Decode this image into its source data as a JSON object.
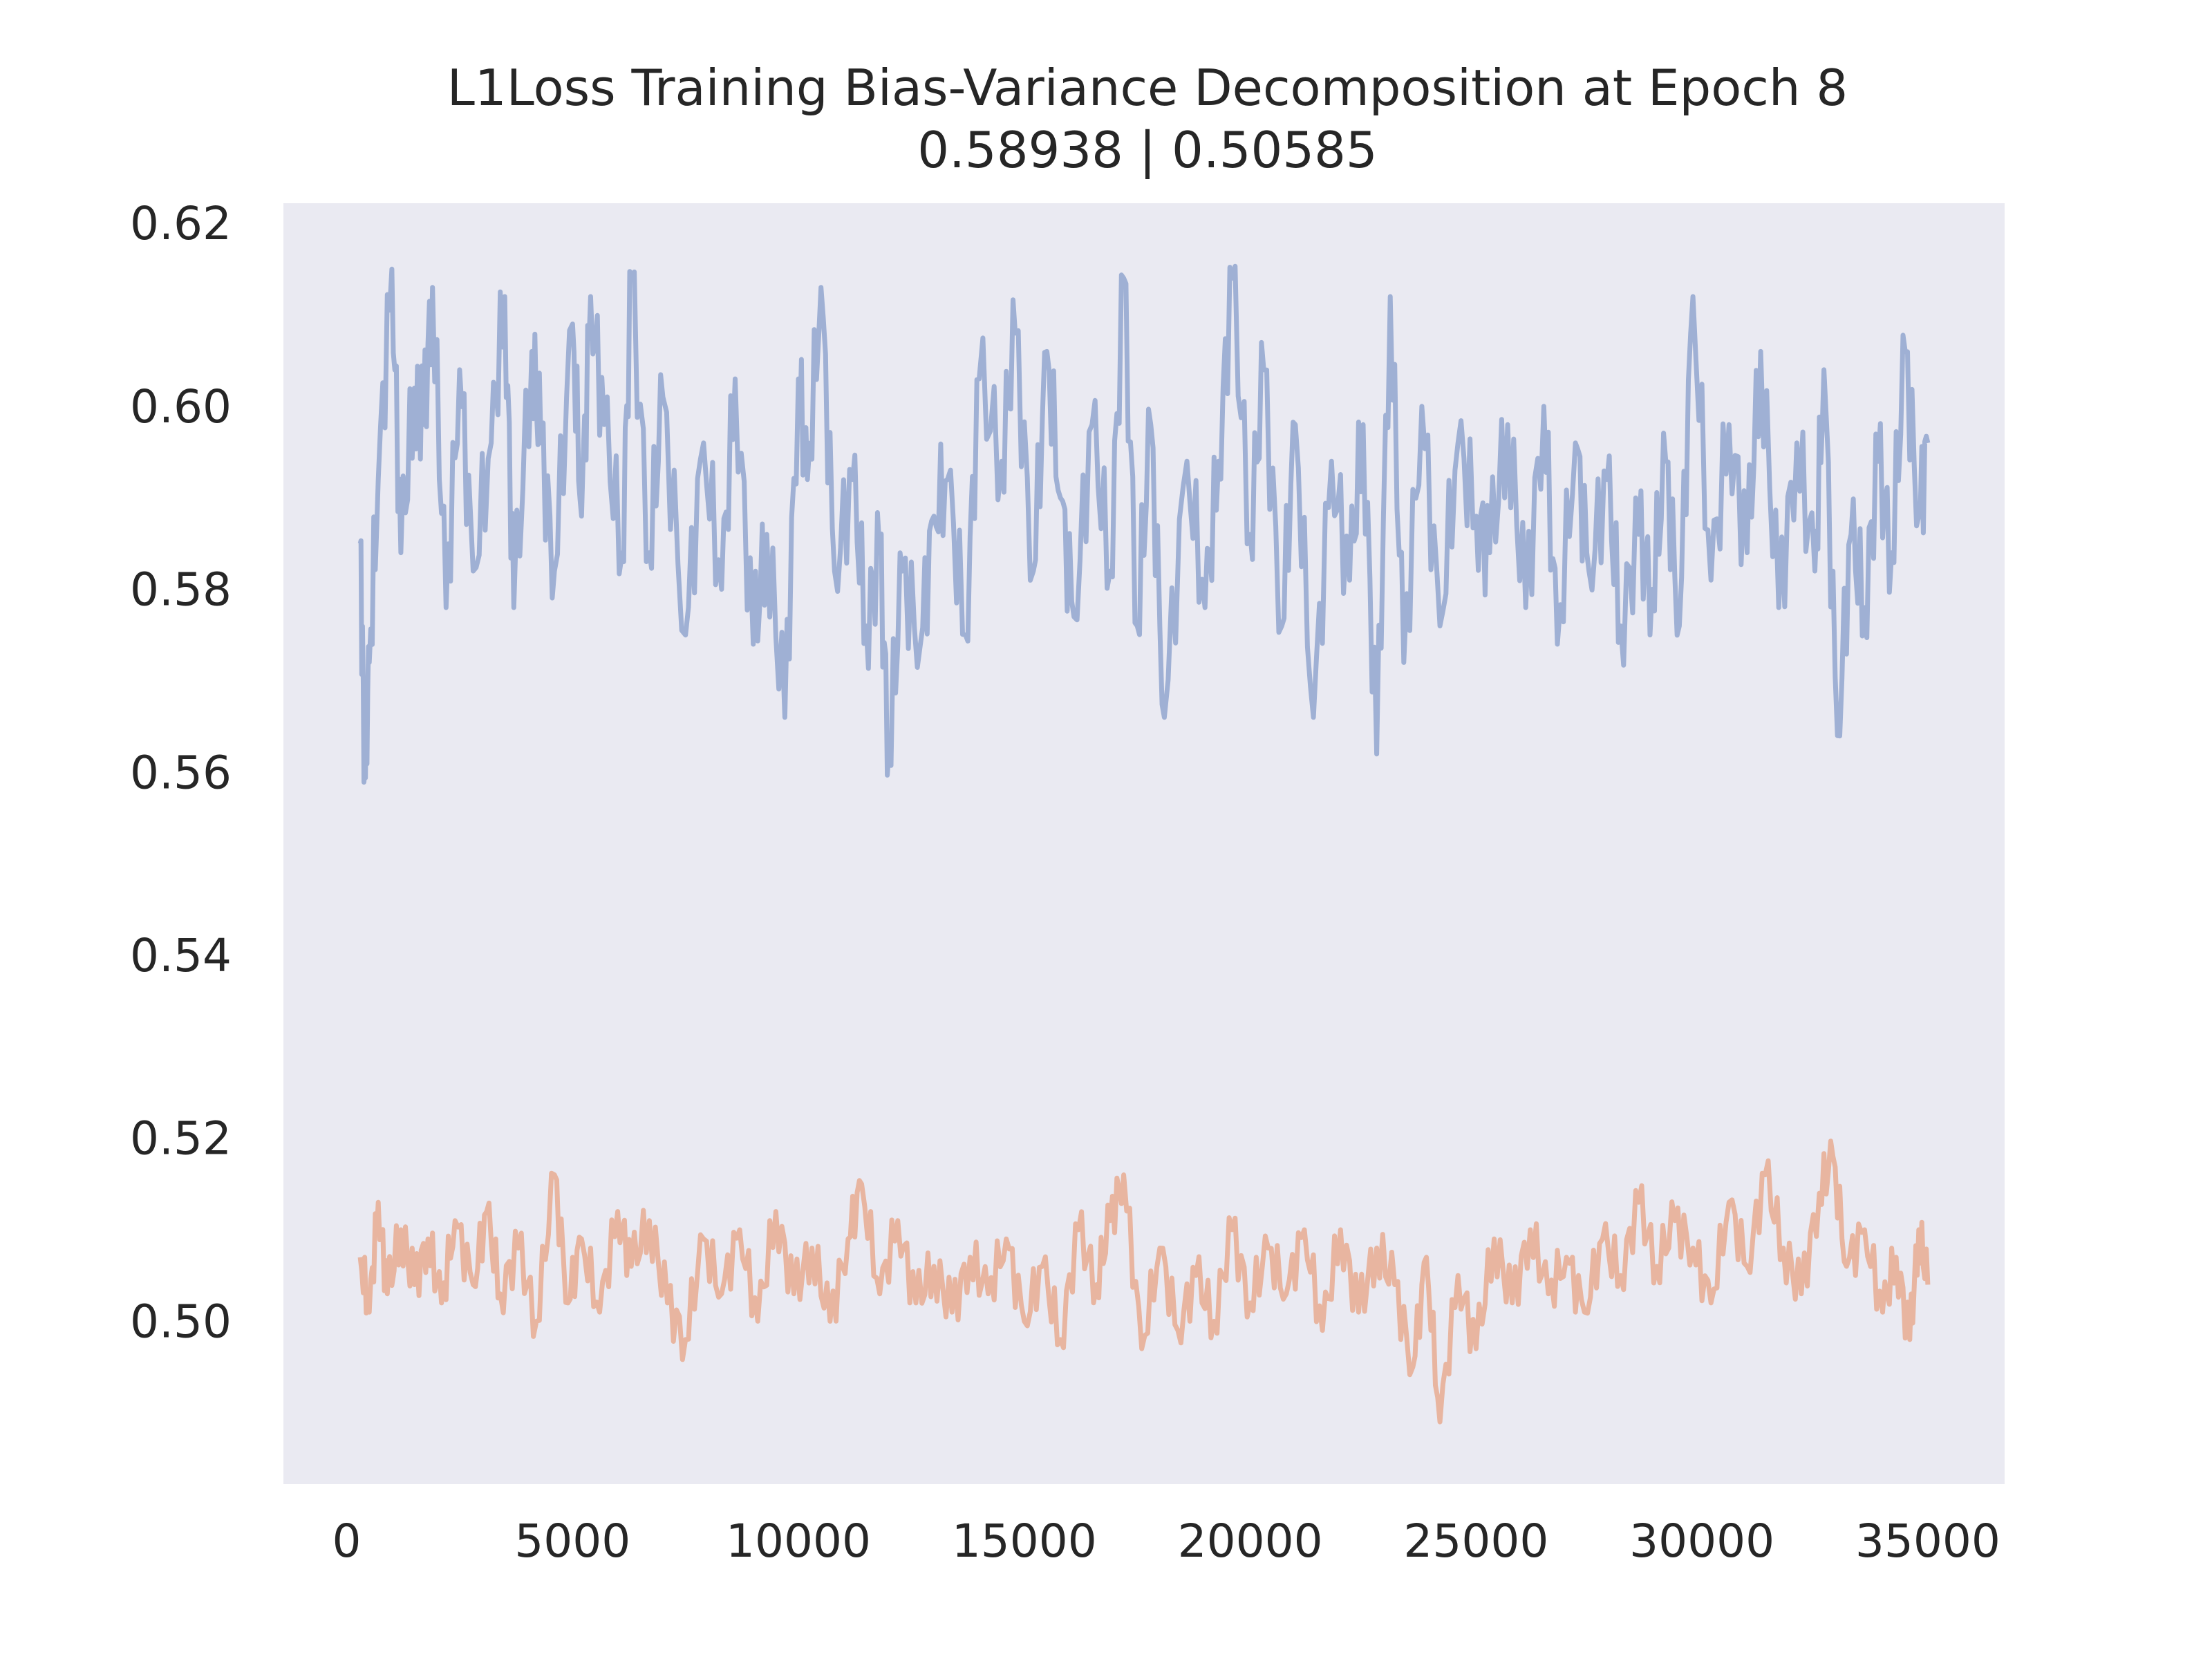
{
  "chart_data": {
    "type": "line",
    "title": "L1Loss Training Bias-Variance Decomposition at Epoch 8",
    "subtitle": "0.58938 | 0.50585",
    "xlabel": "",
    "ylabel": "",
    "xlim": [
      -1400,
      36700
    ],
    "ylim": [
      0.4822,
      0.6222
    ],
    "x_ticks": [
      0,
      5000,
      10000,
      15000,
      20000,
      25000,
      30000,
      35000
    ],
    "x_tick_labels": [
      "0",
      "5000",
      "10000",
      "15000",
      "20000",
      "25000",
      "30000",
      "35000"
    ],
    "y_ticks": [
      0.5,
      0.52,
      0.54,
      0.56,
      0.58,
      0.6,
      0.62
    ],
    "y_tick_labels": [
      "0.50",
      "0.52",
      "0.54",
      "0.56",
      "0.58",
      "0.60",
      "0.62"
    ],
    "grid": false,
    "background": "#eaeaf2",
    "series": [
      {
        "color": "#9fb0d4",
        "x": [
          300,
          400,
          500,
          700,
          1000,
          1200,
          1500,
          1700,
          1900,
          2200,
          2500,
          2800,
          3200,
          3500,
          3700,
          4100,
          4300,
          4600,
          5000,
          5200,
          5400,
          5700,
          6100,
          6300,
          6700,
          7000,
          7500,
          7900,
          8300,
          8600,
          9000,
          9300,
          9700,
          10000,
          10200,
          10500,
          10800,
          11200,
          11500,
          11800,
          12000,
          12300,
          12700,
          13000,
          13300,
          13700,
          14000,
          14500,
          14800,
          15200,
          15500,
          15800,
          16100,
          16500,
          16900,
          17200,
          17500,
          17800,
          18100,
          18600,
          19000,
          19300,
          19600,
          20000,
          20300,
          20700,
          21000,
          21400,
          21800,
          22200,
          22500,
          22800,
          23100,
          23400,
          23800,
          24200,
          24600,
          25000,
          25300,
          25700,
          26100,
          26500,
          26800,
          27200,
          27500,
          27900,
          28200,
          28600,
          28900,
          29200,
          29500,
          29800,
          30200,
          30600,
          31000,
          31300,
          31700,
          32100,
          32500,
          32700,
          33000,
          33300,
          33600,
          33900,
          34200,
          34500,
          34800,
          35000
        ],
        "values": [
          0.585,
          0.56,
          0.572,
          0.592,
          0.615,
          0.584,
          0.602,
          0.598,
          0.613,
          0.578,
          0.604,
          0.582,
          0.596,
          0.612,
          0.578,
          0.606,
          0.596,
          0.582,
          0.609,
          0.588,
          0.612,
          0.598,
          0.584,
          0.614,
          0.584,
          0.601,
          0.575,
          0.596,
          0.58,
          0.603,
          0.574,
          0.586,
          0.566,
          0.603,
          0.592,
          0.613,
          0.582,
          0.592,
          0.576,
          0.584,
          0.562,
          0.582,
          0.574,
          0.588,
          0.592,
          0.575,
          0.603,
          0.594,
          0.608,
          0.582,
          0.606,
          0.59,
          0.577,
          0.598,
          0.582,
          0.614,
          0.576,
          0.598,
          0.566,
          0.594,
          0.578,
          0.594,
          0.614,
          0.586,
          0.604,
          0.576,
          0.598,
          0.566,
          0.594,
          0.581,
          0.598,
          0.562,
          0.612,
          0.572,
          0.6,
          0.576,
          0.596,
          0.588,
          0.584,
          0.598,
          0.578,
          0.6,
          0.574,
          0.596,
          0.582,
          0.592,
          0.576,
          0.586,
          0.58,
          0.594,
          0.576,
          0.612,
          0.581,
          0.598,
          0.584,
          0.606,
          0.578,
          0.596,
          0.582,
          0.604,
          0.564,
          0.586,
          0.578,
          0.594,
          0.584,
          0.606,
          0.588,
          0.596
        ]
      },
      {
        "color": "#e8b5a0",
        "x": [
          300,
          500,
          700,
          900,
          1200,
          1500,
          1800,
          2100,
          2400,
          2800,
          3100,
          3400,
          3800,
          4200,
          4600,
          4900,
          5200,
          5600,
          6000,
          6300,
          6700,
          7100,
          7500,
          7900,
          8300,
          8700,
          9100,
          9500,
          9900,
          10300,
          10700,
          11100,
          11400,
          11800,
          12200,
          12600,
          13000,
          13400,
          13800,
          14200,
          14600,
          15000,
          15400,
          15800,
          16200,
          16600,
          16900,
          17200,
          17600,
          18000,
          18400,
          18800,
          19200,
          19600,
          20000,
          20400,
          20800,
          21200,
          21600,
          22000,
          22400,
          22800,
          23200,
          23600,
          23900,
          24200,
          24600,
          25000,
          25400,
          25800,
          26200,
          26600,
          27000,
          27400,
          27800,
          28200,
          28600,
          29000,
          29400,
          29800,
          30200,
          30600,
          31000,
          31400,
          31800,
          32200,
          32600,
          32900,
          33200,
          33600,
          34000,
          34300,
          34600,
          34800,
          35000
        ],
        "values": [
          0.507,
          0.501,
          0.513,
          0.503,
          0.51,
          0.504,
          0.509,
          0.502,
          0.511,
          0.504,
          0.512,
          0.503,
          0.508,
          0.5,
          0.516,
          0.502,
          0.509,
          0.501,
          0.512,
          0.506,
          0.511,
          0.502,
          0.498,
          0.509,
          0.503,
          0.51,
          0.5,
          0.512,
          0.503,
          0.508,
          0.5,
          0.509,
          0.515,
          0.503,
          0.511,
          0.502,
          0.506,
          0.501,
          0.507,
          0.503,
          0.509,
          0.5,
          0.506,
          0.498,
          0.51,
          0.504,
          0.511,
          0.516,
          0.497,
          0.508,
          0.499,
          0.505,
          0.5,
          0.51,
          0.502,
          0.508,
          0.503,
          0.51,
          0.499,
          0.51,
          0.501,
          0.508,
          0.504,
          0.495,
          0.507,
          0.489,
          0.505,
          0.497,
          0.509,
          0.502,
          0.51,
          0.503,
          0.507,
          0.501,
          0.509,
          0.505,
          0.513,
          0.506,
          0.511,
          0.508,
          0.502,
          0.513,
          0.506,
          0.516,
          0.508,
          0.503,
          0.514,
          0.518,
          0.506,
          0.51,
          0.501,
          0.507,
          0.498,
          0.51,
          0.504
        ]
      }
    ]
  }
}
